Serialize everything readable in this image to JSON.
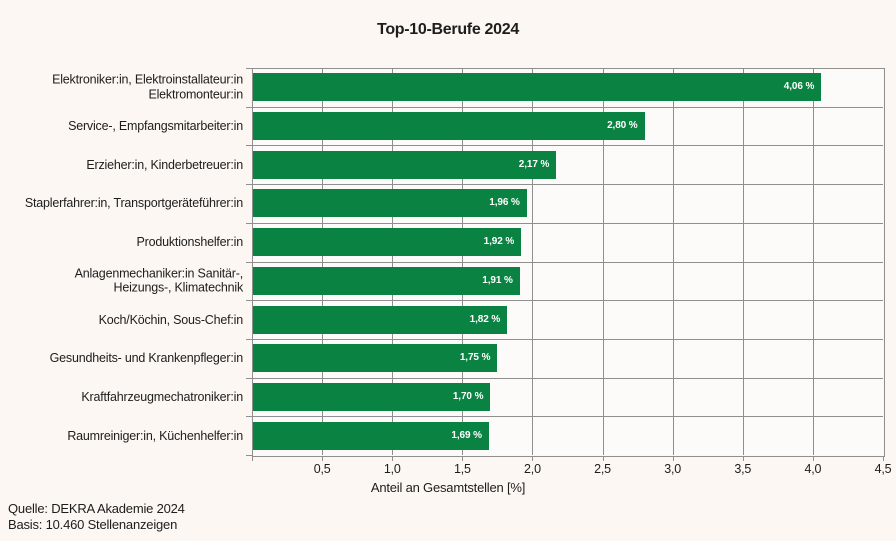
{
  "figure": {
    "title": "Top-10-Berufe 2024",
    "source_line1": "Quelle: DEKRA Akademie 2024",
    "source_line2": "Basis: 10.460 Stellenanzeigen"
  },
  "chart_data": {
    "type": "bar",
    "orientation": "horizontal",
    "title": "Top-10-Berufe 2024",
    "xlabel": "Anteil an Gesamtstellen [%]",
    "xlim": [
      0,
      4.5
    ],
    "grid": true,
    "categories": [
      "Elektroniker:in, Elektroinstallateur:in\nElektromonteur:in",
      "Service-, Empfangsmitarbeiter:in",
      "Erzieher:in, Kinderbetreuer:in",
      "Staplerfahrer:in, Transportgeräteführer:in",
      "Produktionshelfer:in",
      "Anlagenmechaniker:in Sanitär-,\nHeizungs-, Klimatechnik",
      "Koch/Köchin, Sous-Chef:in",
      "Gesundheits- und Krankenpfleger:in",
      "Kraftfahrzeugmechatroniker:in",
      "Raumreiniger:in, Küchenhelfer:in"
    ],
    "values": [
      4.06,
      2.8,
      2.17,
      1.96,
      1.92,
      1.91,
      1.82,
      1.75,
      1.7,
      1.69
    ],
    "value_labels": [
      "4,06 %",
      "2,80 %",
      "2,17 %",
      "1,96 %",
      "1,92 %",
      "1,91 %",
      "1,82 %",
      "1,75 %",
      "1,70 %",
      "1,69 %"
    ],
    "xtick_values": [
      0.5,
      1.0,
      1.5,
      2.0,
      2.5,
      3.0,
      3.5,
      4.0,
      4.5
    ],
    "xtick_labels": [
      "0,5",
      "1,0",
      "1,5",
      "2,0",
      "2,5",
      "3,0",
      "3,5",
      "4,0",
      "4,5"
    ]
  },
  "colors": {
    "bar": "#0a8241",
    "value_text": "#ffffff",
    "grid": "#8f8f8f",
    "text": "#1d1d1b",
    "background": "#fdf7f4",
    "plot_background": "#fdfbf9"
  }
}
